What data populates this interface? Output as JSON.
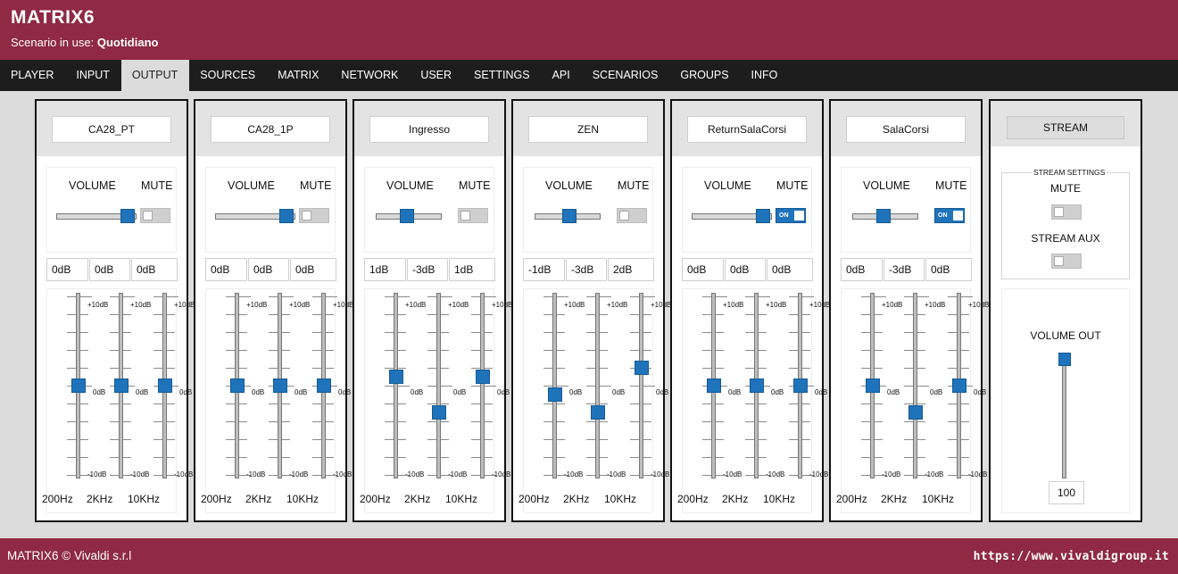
{
  "app": {
    "title": "MATRIX6",
    "scenario_label": "Scenario in use:",
    "scenario_name": "Quotidiano"
  },
  "nav": {
    "items": [
      "PLAYER",
      "INPUT",
      "OUTPUT",
      "SOURCES",
      "MATRIX",
      "NETWORK",
      "USER",
      "SETTINGS",
      "API",
      "SCENARIOS",
      "GROUPS",
      "INFO"
    ],
    "active": "OUTPUT"
  },
  "labels": {
    "volume": "VOLUME",
    "mute": "MUTE",
    "toggle_on": "ON",
    "scale_top": "+10dB",
    "scale_mid": "0dB",
    "scale_bottom": "-10dB",
    "freqs": [
      "200Hz",
      "2KHz",
      "10KHz"
    ]
  },
  "eq_range_db": [
    -10,
    10
  ],
  "outputs": [
    {
      "name": "CA28_PT",
      "volume": 1.0,
      "mute": false,
      "eq": [
        "0dB",
        "0dB",
        "0dB"
      ],
      "eq_values": [
        0,
        0,
        0
      ]
    },
    {
      "name": "CA28_1P",
      "volume": 1.0,
      "mute": false,
      "eq": [
        "0dB",
        "0dB",
        "0dB"
      ],
      "eq_values": [
        0,
        0,
        0
      ]
    },
    {
      "name": "Ingresso",
      "volume": 0.47,
      "mute": false,
      "eq": [
        "1dB",
        "-3dB",
        "1dB"
      ],
      "eq_values": [
        1,
        -3,
        1
      ]
    },
    {
      "name": "ZEN",
      "volume": 0.53,
      "mute": false,
      "eq": [
        "-1dB",
        "-3dB",
        "2dB"
      ],
      "eq_values": [
        -1,
        -3,
        2
      ]
    },
    {
      "name": "ReturnSalaCorsi",
      "volume": 1.0,
      "mute": true,
      "eq": [
        "0dB",
        "0dB",
        "0dB"
      ],
      "eq_values": [
        0,
        0,
        0
      ]
    },
    {
      "name": "SalaCorsi",
      "volume": 0.47,
      "mute": true,
      "eq": [
        "0dB",
        "-3dB",
        "0dB"
      ],
      "eq_values": [
        0,
        -3,
        0
      ]
    }
  ],
  "stream": {
    "title": "STREAM",
    "settings_legend": "STREAM SETTINGS",
    "mute_label": "MUTE",
    "mute": false,
    "aux_label": "STREAM AUX",
    "aux": false,
    "volume_out_label": "VOLUME OUT",
    "volume_out": "100"
  },
  "footer": {
    "copyright": "MATRIX6 © Vivaldi s.r.l",
    "url": "https://www.vivaldigroup.it"
  }
}
